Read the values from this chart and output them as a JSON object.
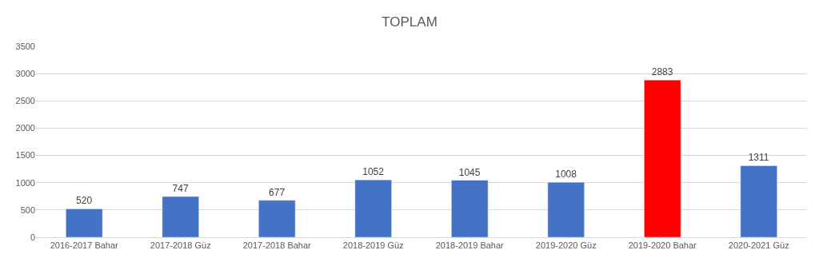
{
  "chart_data": {
    "type": "bar",
    "title": "TOPLAM",
    "categories": [
      "2016-2017 Bahar",
      "2017-2018 Güz",
      "2017-2018 Bahar",
      "2018-2019 Güz",
      "2018-2019 Bahar",
      "2019-2020 Güz",
      "2019-2020 Bahar",
      "2020-2021 Güz"
    ],
    "values": [
      520,
      747,
      677,
      1052,
      1045,
      1008,
      2883,
      1311
    ],
    "colors": [
      "#4472c4",
      "#4472c4",
      "#4472c4",
      "#4472c4",
      "#4472c4",
      "#4472c4",
      "#ff0000",
      "#4472c4"
    ],
    "ylim": [
      0,
      3500
    ],
    "yticks": [
      0,
      500,
      1000,
      1500,
      2000,
      2500,
      3000,
      3500
    ],
    "grid": "y",
    "data_labels": true
  }
}
